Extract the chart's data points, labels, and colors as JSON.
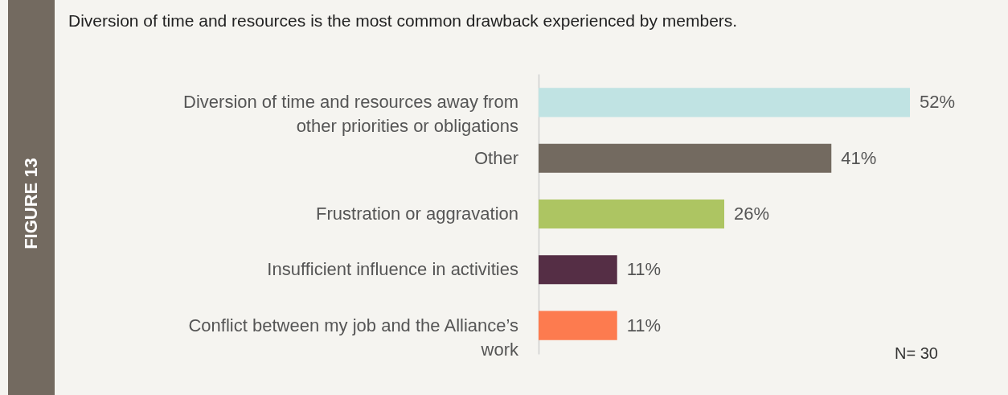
{
  "chart_data": {
    "type": "bar",
    "orientation": "horizontal",
    "title": "Diversion of time and resources is the most common drawback experienced by members.",
    "categories": [
      "Diversion of time and resources away from other priorities or obligations",
      "Other",
      "Frustration or aggravation",
      "Insufficient influence in activities",
      "Conflict between my job and the Alliance’s work"
    ],
    "values": [
      52,
      41,
      26,
      11,
      11
    ],
    "colors": [
      "#c0e3e3",
      "#736a60",
      "#adc562",
      "#552e45",
      "#fd7b4f"
    ],
    "value_labels": [
      "52%",
      "41%",
      "26%",
      "11%",
      "11%"
    ],
    "annotations": [
      "FIGURE 13",
      "N= 30"
    ]
  }
}
